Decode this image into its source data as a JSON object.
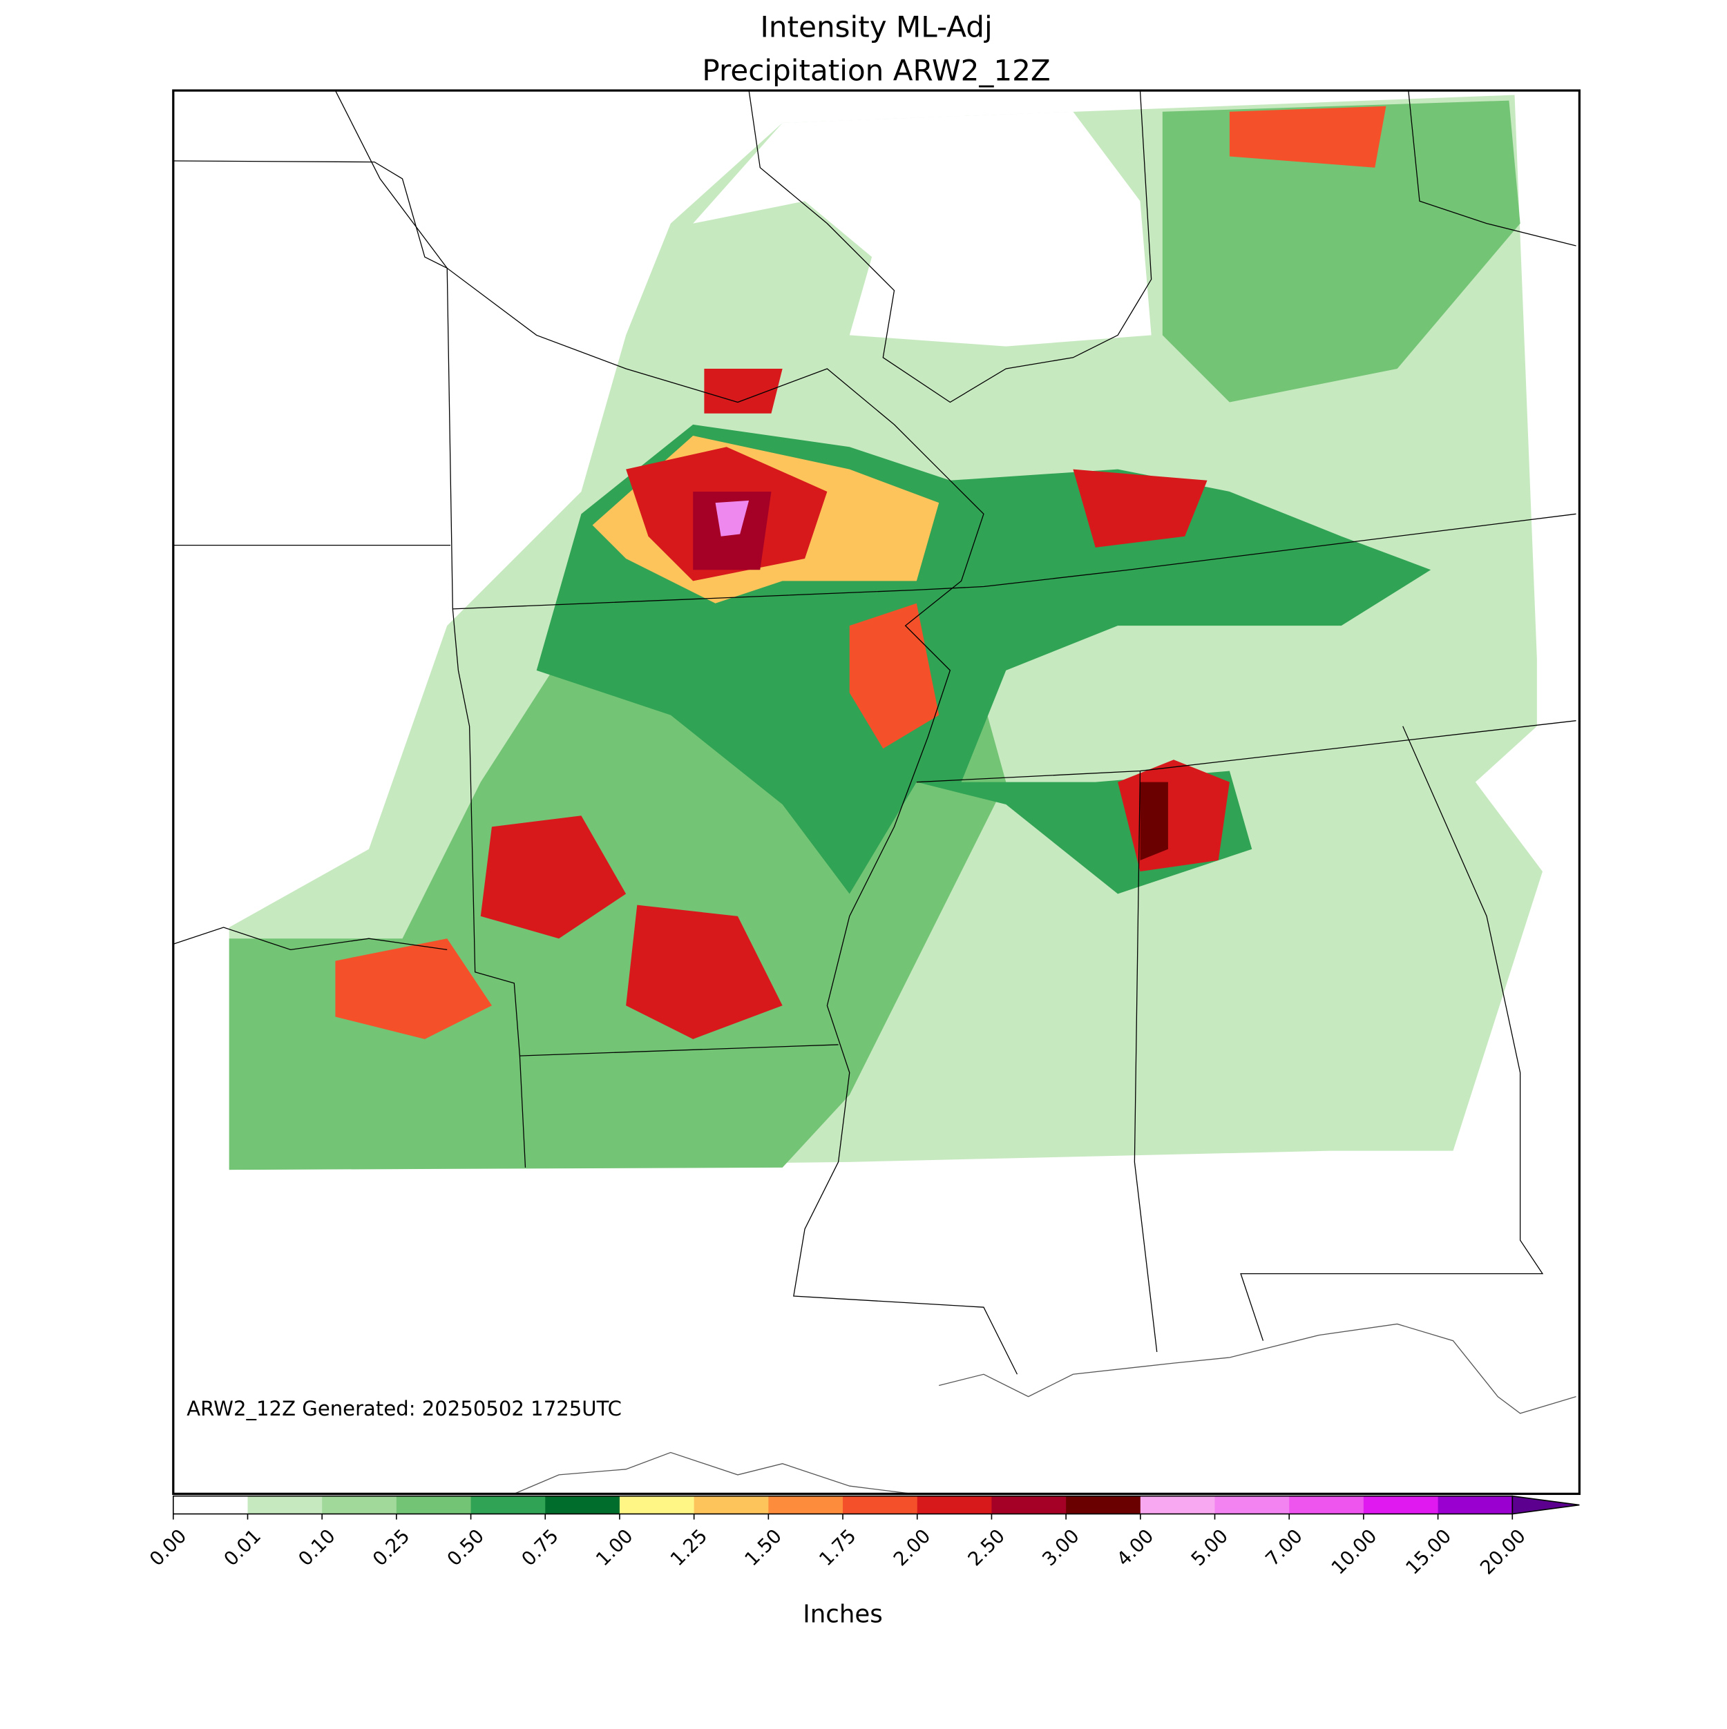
{
  "header": {
    "title": "Intensity ML-Adj",
    "subtitle": "Precipitation ARW2_12Z"
  },
  "annotation": "ARW2_12Z Generated: 20250502 1725UTC",
  "colorbar": {
    "label": "Inches",
    "ticks": [
      {
        "value": 0,
        "label": "0.00"
      },
      {
        "value": 0.01,
        "label": "0.01"
      },
      {
        "value": 0.1,
        "label": "0.10"
      },
      {
        "value": 0.25,
        "label": "0.25"
      },
      {
        "value": 0.5,
        "label": "0.50"
      },
      {
        "value": 0.75,
        "label": "0.75"
      },
      {
        "value": 1,
        "label": "1.00"
      },
      {
        "value": 1.25,
        "label": "1.25"
      },
      {
        "value": 1.5,
        "label": "1.50"
      },
      {
        "value": 1.75,
        "label": "1.75"
      },
      {
        "value": 2,
        "label": "2.00"
      },
      {
        "value": 2.5,
        "label": "2.50"
      },
      {
        "value": 3,
        "label": "3.00"
      },
      {
        "value": 4,
        "label": "4.00"
      },
      {
        "value": 5,
        "label": "5.00"
      },
      {
        "value": 7,
        "label": "7.00"
      },
      {
        "value": 10,
        "label": "10.00"
      },
      {
        "value": 15,
        "label": "15.00"
      },
      {
        "value": 20,
        "label": "20.00"
      }
    ],
    "colors": [
      "#ffffff",
      "#c7e9c0",
      "#a1d99b",
      "#74c476",
      "#31a354",
      "#006d2c",
      "#fff685",
      "#fdc45c",
      "#fd8d3c",
      "#f4502a",
      "#d7191c",
      "#a50026",
      "#6b0000",
      "#f8a8f0",
      "#f283f0",
      "#ee55ee",
      "#e019f0",
      "#9a00d0"
    ],
    "extend_color": "#5c0090"
  }
}
